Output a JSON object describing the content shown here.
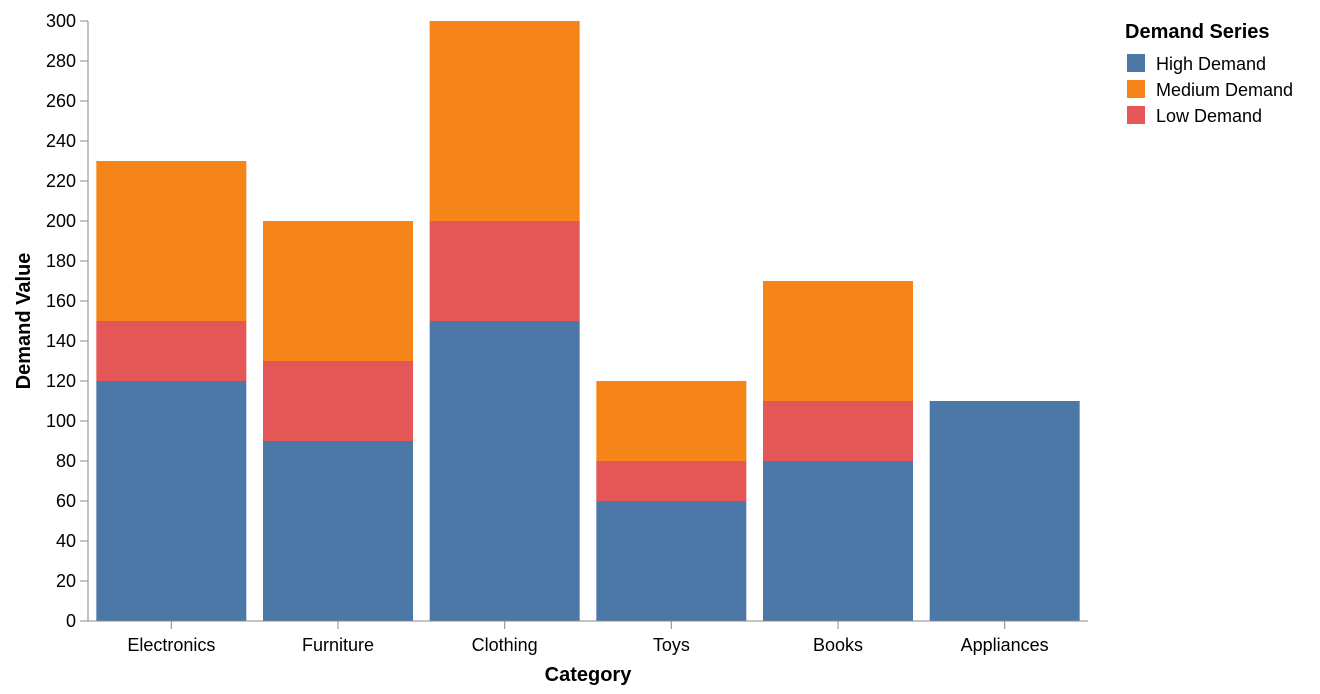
{
  "chart_data": {
    "type": "bar",
    "stacked": true,
    "xlabel": "Category",
    "ylabel": "Demand Value",
    "ylim": [
      0,
      300
    ],
    "yticks": [
      0,
      20,
      40,
      60,
      80,
      100,
      120,
      140,
      160,
      180,
      200,
      220,
      240,
      260,
      280,
      300
    ],
    "categories": [
      "Electronics",
      "Furniture",
      "Clothing",
      "Toys",
      "Books",
      "Appliances"
    ],
    "stack_order": [
      "High Demand",
      "Low Demand",
      "Medium Demand"
    ],
    "series": [
      {
        "name": "High Demand",
        "color": "#4c78a8",
        "values": [
          120,
          90,
          150,
          60,
          80,
          110
        ]
      },
      {
        "name": "Medium Demand",
        "color": "#f58518",
        "values": [
          80,
          70,
          100,
          40,
          60,
          0
        ]
      },
      {
        "name": "Low Demand",
        "color": "#e45756",
        "values": [
          30,
          40,
          50,
          20,
          30,
          0
        ]
      }
    ],
    "legend": {
      "title": "Demand Series",
      "position": "top-right"
    },
    "grid": false
  }
}
